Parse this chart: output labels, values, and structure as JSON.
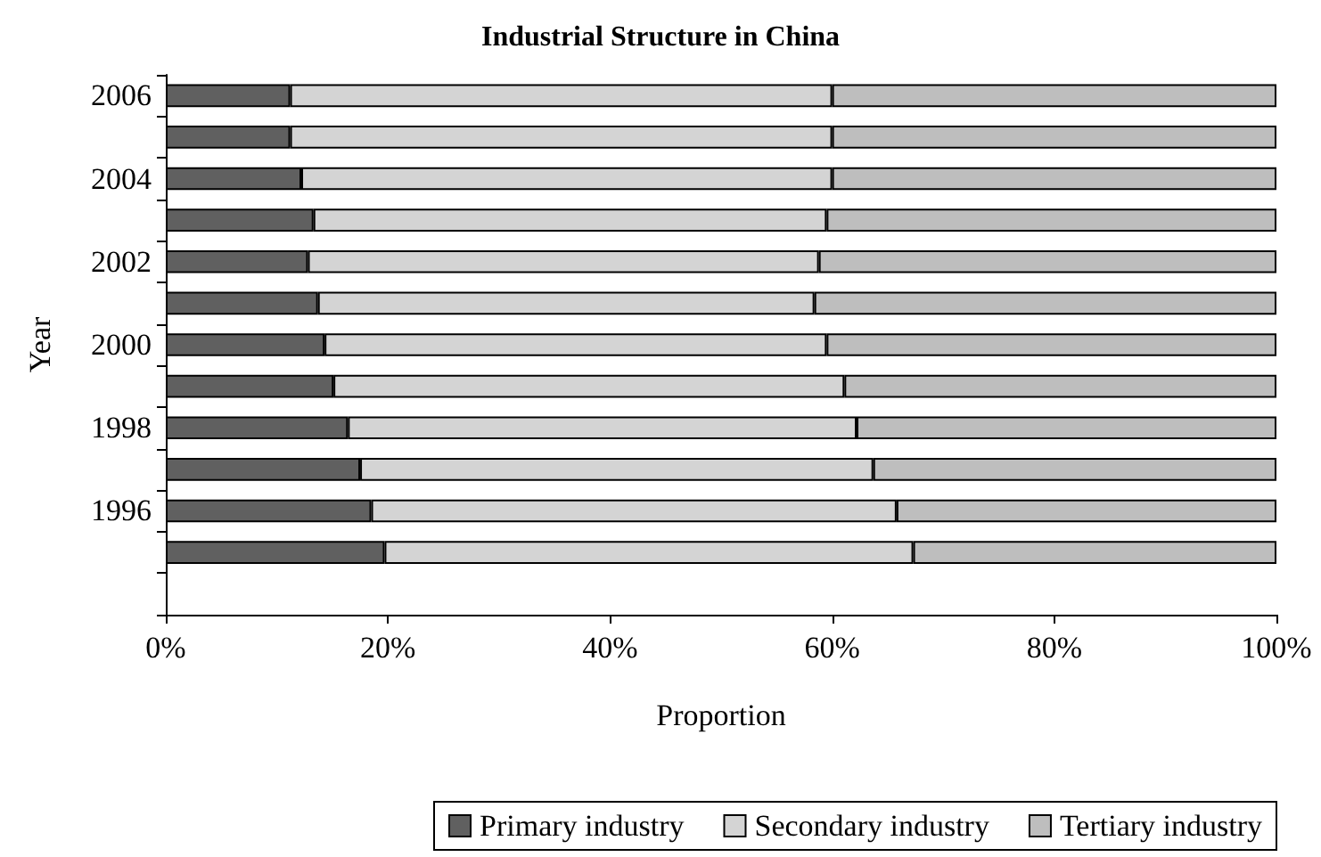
{
  "chart_data": {
    "type": "bar",
    "orientation": "horizontal",
    "stacked": true,
    "title": "Industrial Structure in China",
    "xlabel": "Proportion",
    "ylabel": "Year",
    "categories": [
      "2006",
      null,
      "2004",
      null,
      "2002",
      null,
      "2000",
      null,
      "1998",
      null,
      "1996",
      null,
      null
    ],
    "series": [
      {
        "name": "Primary industry",
        "color": "#606060",
        "values": [
          11.2,
          11.2,
          12.2,
          13.3,
          12.8,
          13.7,
          14.3,
          15.1,
          16.4,
          17.5,
          18.5,
          19.7,
          null
        ]
      },
      {
        "name": "Secondary industry",
        "color": "#d4d4d4",
        "values": [
          48.8,
          48.8,
          47.8,
          46.2,
          46.0,
          44.7,
          45.2,
          46.0,
          45.8,
          46.2,
          47.3,
          47.6,
          null
        ]
      },
      {
        "name": "Tertiary industry",
        "color": "#bebebe",
        "values": [
          40.0,
          40.0,
          40.0,
          40.5,
          41.2,
          41.6,
          40.5,
          38.9,
          37.8,
          36.3,
          34.2,
          32.7,
          null
        ]
      }
    ],
    "xlim": [
      0,
      100
    ],
    "xticks": [
      {
        "value": 0,
        "label": "0%"
      },
      {
        "value": 20,
        "label": "20%"
      },
      {
        "value": 40,
        "label": "40%"
      },
      {
        "value": 60,
        "label": "60%"
      },
      {
        "value": 80,
        "label": "80%"
      },
      {
        "value": 100,
        "label": "100%"
      }
    ],
    "grid": false,
    "legend": "bottom"
  }
}
